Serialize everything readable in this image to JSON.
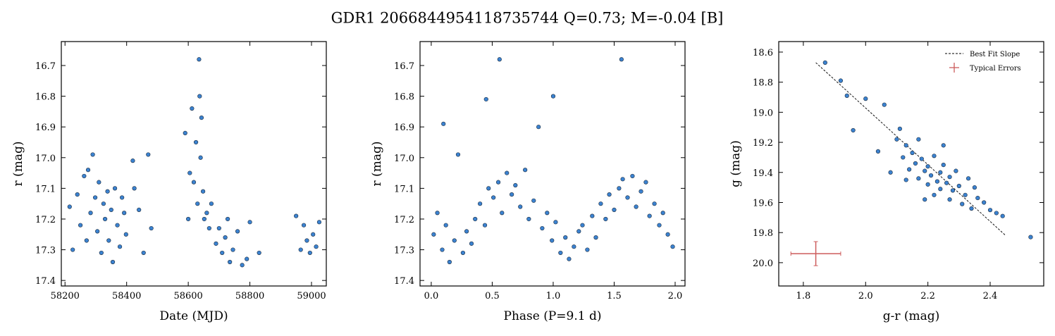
{
  "title": "GDR1 2066844954118735744  Q=0.73; M=-0.04 [B]",
  "chart_data": [
    {
      "type": "scatter",
      "xlabel": "Date (MJD)",
      "ylabel": "r (mag)",
      "xlim": [
        58188,
        59048
      ],
      "ylim": [
        17.418,
        16.622
      ],
      "xticks": [
        58200,
        58400,
        58600,
        58800,
        59000
      ],
      "yticks": [
        16.7,
        16.8,
        16.9,
        {
          "value": 17,
          "label": "17.0"
        },
        17.1,
        17.2,
        17.3,
        17.4
      ],
      "series": [
        {
          "color": "#3b82d0",
          "x": [
            58215,
            58225,
            58240,
            58250,
            58262,
            58270,
            58275,
            58283,
            58290,
            58298,
            58305,
            58310,
            58318,
            58325,
            58330,
            58338,
            58342,
            58350,
            58355,
            58362,
            58370,
            58378,
            58385,
            58392,
            58398,
            58420,
            58425,
            58440,
            58455,
            58470,
            58480,
            58590,
            58600,
            58605,
            58612,
            58618,
            58625,
            58630,
            58635,
            58637,
            58640,
            58643,
            58648,
            58652,
            58660,
            58668,
            58675,
            58690,
            58700,
            58710,
            58720,
            58728,
            58735,
            58745,
            58760,
            58775,
            58790,
            58800,
            58830,
            58950,
            58965,
            58975,
            58985,
            58995,
            59005,
            59015,
            59025
          ],
          "values": [
            17.16,
            17.3,
            17.12,
            17.22,
            17.06,
            17.27,
            17.04,
            17.18,
            16.99,
            17.13,
            17.24,
            17.08,
            17.31,
            17.15,
            17.2,
            17.11,
            17.27,
            17.17,
            17.34,
            17.1,
            17.22,
            17.29,
            17.13,
            17.18,
            17.25,
            17.01,
            17.1,
            17.17,
            17.31,
            16.99,
            17.23,
            16.92,
            17.2,
            17.05,
            16.84,
            17.08,
            16.95,
            17.15,
            16.68,
            16.8,
            17.0,
            16.87,
            17.11,
            17.2,
            17.18,
            17.23,
            17.15,
            17.28,
            17.23,
            17.31,
            17.26,
            17.2,
            17.34,
            17.3,
            17.24,
            17.35,
            17.33,
            17.21,
            17.31,
            17.19,
            17.3,
            17.22,
            17.27,
            17.31,
            17.25,
            17.29,
            17.21
          ]
        }
      ]
    },
    {
      "type": "scatter",
      "xlabel": "Phase (P=9.1 d)",
      "ylabel": "r (mag)",
      "xlim": [
        -0.092,
        2.081
      ],
      "ylim": [
        17.418,
        16.622
      ],
      "xticks": [
        {
          "value": 0,
          "label": "0.0"
        },
        0.5,
        {
          "value": 1,
          "label": "1.0"
        },
        1.5,
        {
          "value": 2,
          "label": "2.0"
        }
      ],
      "yticks": [
        16.7,
        16.8,
        16.9,
        {
          "value": 17,
          "label": "17.0"
        },
        17.1,
        17.2,
        17.3,
        17.4
      ],
      "series": [
        {
          "color": "#3b82d0",
          "x": [
            0.02,
            0.05,
            0.09,
            0.12,
            0.15,
            0.19,
            0.22,
            0.26,
            0.29,
            0.33,
            0.36,
            0.4,
            0.44,
            0.47,
            0.51,
            0.55,
            0.58,
            0.62,
            0.66,
            0.69,
            0.73,
            0.77,
            0.8,
            0.84,
            0.88,
            0.91,
            0.95,
            0.99,
            1.02,
            1.06,
            1.1,
            1.13,
            1.17,
            1.21,
            1.24,
            1.28,
            1.32,
            1.35,
            1.39,
            1.43,
            1.46,
            1.5,
            1.54,
            1.57,
            1.61,
            1.65,
            1.68,
            1.72,
            1.76,
            1.79,
            1.83,
            1.87,
            1.9,
            1.94,
            1.98,
            0.1,
            0.56,
            0.45,
            1.56,
            1.0
          ],
          "values": [
            17.25,
            17.18,
            17.3,
            17.22,
            17.34,
            17.27,
            16.99,
            17.31,
            17.24,
            17.28,
            17.2,
            17.15,
            17.22,
            17.1,
            17.13,
            17.08,
            17.18,
            17.05,
            17.12,
            17.09,
            17.16,
            17.04,
            17.2,
            17.14,
            16.9,
            17.23,
            17.18,
            17.27,
            17.21,
            17.31,
            17.26,
            17.33,
            17.29,
            17.24,
            17.22,
            17.3,
            17.19,
            17.26,
            17.15,
            17.2,
            17.12,
            17.17,
            17.1,
            17.07,
            17.13,
            17.06,
            17.16,
            17.11,
            17.08,
            17.19,
            17.15,
            17.22,
            17.18,
            17.25,
            17.29,
            16.89,
            16.68,
            16.81,
            16.68,
            16.8
          ]
        }
      ]
    },
    {
      "type": "scatter",
      "xlabel": "g-r (mag)",
      "ylabel": "g (mag)",
      "xlim": [
        1.721,
        2.572
      ],
      "ylim": [
        20.155,
        18.53
      ],
      "xticks": [
        1.8,
        {
          "value": 2,
          "label": "2.0"
        },
        2.2,
        2.4
      ],
      "yticks": [
        18.6,
        18.8,
        {
          "value": 19,
          "label": "19.0"
        },
        19.2,
        19.4,
        19.6,
        19.8,
        {
          "value": 20,
          "label": "20.0"
        }
      ],
      "series": [
        {
          "color": "#3b82d0",
          "x": [
            1.87,
            1.92,
            1.94,
            1.96,
            2.0,
            2.06,
            2.04,
            2.08,
            2.1,
            2.11,
            2.12,
            2.13,
            2.14,
            2.15,
            2.16,
            2.17,
            2.18,
            2.19,
            2.2,
            2.2,
            2.21,
            2.22,
            2.22,
            2.23,
            2.24,
            2.24,
            2.25,
            2.26,
            2.27,
            2.27,
            2.28,
            2.29,
            2.3,
            2.31,
            2.32,
            2.33,
            2.34,
            2.35,
            2.36,
            2.38,
            2.4,
            2.42,
            2.44,
            2.53,
            2.17,
            2.25,
            2.13,
            2.19
          ],
          "values": [
            18.67,
            18.79,
            18.89,
            19.12,
            18.91,
            18.95,
            19.26,
            19.4,
            19.18,
            19.11,
            19.3,
            19.22,
            19.38,
            19.27,
            19.34,
            19.44,
            19.31,
            19.39,
            19.48,
            19.36,
            19.42,
            19.55,
            19.29,
            19.46,
            19.4,
            19.51,
            19.35,
            19.47,
            19.58,
            19.43,
            19.52,
            19.39,
            19.49,
            19.61,
            19.55,
            19.44,
            19.64,
            19.5,
            19.57,
            19.6,
            19.65,
            19.67,
            19.69,
            19.83,
            19.18,
            19.22,
            19.45,
            19.58
          ]
        }
      ],
      "lines": [
        {
          "name": "Best Fit Slope",
          "x": [
            1.84,
            2.45
          ],
          "values": [
            18.67,
            19.82
          ],
          "color": "#000000",
          "dashed": true
        }
      ],
      "errorbar": {
        "name": "Typical Errors",
        "x": 1.84,
        "value": 19.94,
        "xerr": 0.08,
        "yerr": 0.08,
        "color": "#cd5c5c"
      },
      "legend": "upper right"
    }
  ]
}
